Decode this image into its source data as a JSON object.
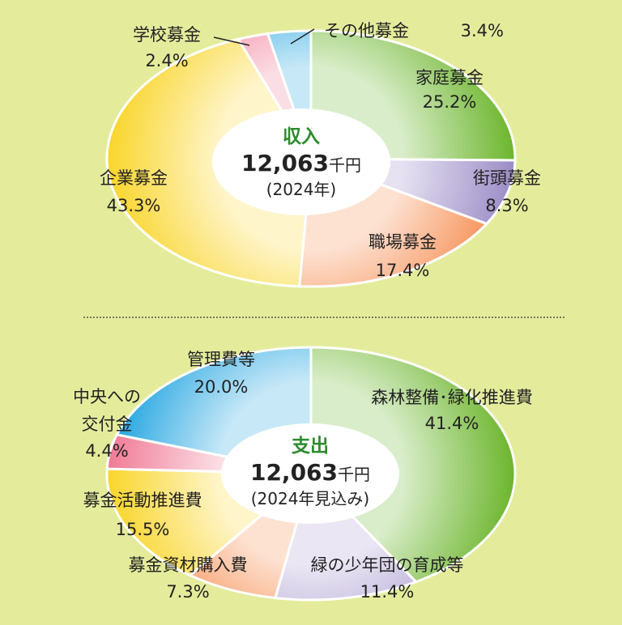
{
  "background": "#e4ec9c",
  "chart_data": [
    {
      "type": "pie",
      "title": "収入",
      "total_value": "12,063",
      "total_unit": "千円",
      "period": "(2024年)",
      "slices": [
        {
          "name": "家庭募金",
          "pct_label": "25.2%",
          "value": 25.2,
          "color": "#6cb52c"
        },
        {
          "name": "街頭募金",
          "pct_label": "8.3%",
          "value": 8.3,
          "color": "#9b8cc6"
        },
        {
          "name": "職場募金",
          "pct_label": "17.4%",
          "value": 17.4,
          "color": "#f68a4c"
        },
        {
          "name": "企業募金",
          "pct_label": "43.3%",
          "value": 43.3,
          "color": "#f9d52a"
        },
        {
          "name": "学校募金",
          "pct_label": "2.4%",
          "value": 2.4,
          "color": "#f07a96"
        },
        {
          "name": "その他募金",
          "pct_label": "3.4%",
          "value": 3.4,
          "color": "#1ea3e0"
        }
      ]
    },
    {
      "type": "pie",
      "title": "支出",
      "total_value": "12,063",
      "total_unit": "千円",
      "period": "(2024年見込み)",
      "slices": [
        {
          "name": "森林整備･緑化推進費",
          "pct_label": "41.4%",
          "value": 41.4,
          "color": "#6cb52c"
        },
        {
          "name": "緑の少年団の育成等",
          "pct_label": "11.4%",
          "value": 11.4,
          "color": "#a99bd0"
        },
        {
          "name": "募金資材購入費",
          "pct_label": "7.3%",
          "value": 7.3,
          "color": "#f68a4c"
        },
        {
          "name": "募金活動推進費",
          "pct_label": "15.5%",
          "value": 15.5,
          "color": "#f9d52a"
        },
        {
          "name": "中央への交付金",
          "label_lines": [
            "中央への",
            "交付金"
          ],
          "pct_label": "4.4%",
          "value": 4.4,
          "color": "#f07a96"
        },
        {
          "name": "管理費等",
          "pct_label": "20.0%",
          "value": 20.0,
          "color": "#1ea3e0"
        }
      ]
    }
  ]
}
